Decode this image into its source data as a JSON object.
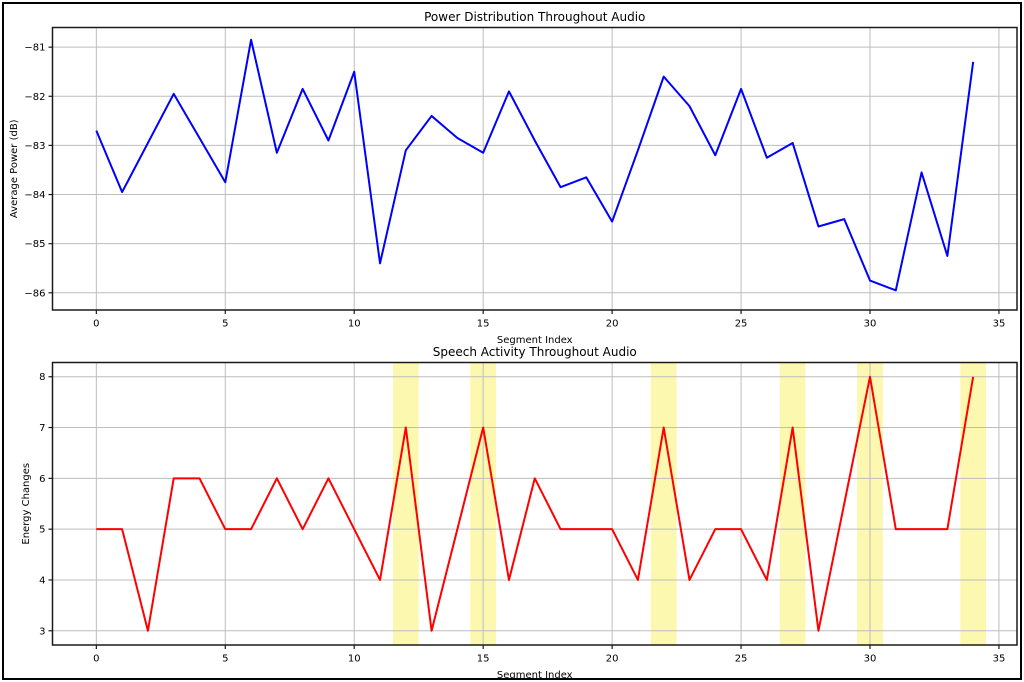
{
  "figure": {
    "background": "#ffffff",
    "border_color": "#000000"
  },
  "chart_data": [
    {
      "id": "power-distribution",
      "type": "line",
      "title": "Power Distribution Throughout Audio",
      "xlabel": "Segment Index",
      "ylabel": "Average Power (dB)",
      "line_color": "#0000ff",
      "line_width": 2,
      "grid": true,
      "grid_color": "#bdbdbd",
      "legend": "none",
      "xlim": [
        -1.7,
        35.7
      ],
      "ylim": [
        -86.35,
        -80.6
      ],
      "xticks": [
        0,
        5,
        10,
        15,
        20,
        25,
        30,
        35
      ],
      "yticks": [
        -81,
        -82,
        -83,
        -84,
        -85,
        -86
      ],
      "x": [
        0,
        1,
        2,
        3,
        4,
        5,
        6,
        7,
        8,
        9,
        10,
        11,
        12,
        13,
        14,
        15,
        16,
        17,
        18,
        19,
        20,
        21,
        22,
        23,
        24,
        25,
        26,
        27,
        28,
        29,
        30,
        31,
        32,
        33,
        34
      ],
      "y": [
        -82.7,
        -83.95,
        -82.95,
        -81.95,
        -82.85,
        -83.75,
        -80.85,
        -83.15,
        -81.85,
        -82.9,
        -81.5,
        -85.4,
        -83.1,
        -82.4,
        -82.85,
        -83.15,
        -81.9,
        -82.9,
        -83.85,
        -83.65,
        -84.55,
        -83.1,
        -81.6,
        -82.2,
        -83.2,
        -81.85,
        -83.25,
        -82.95,
        -84.65,
        -84.5,
        -85.75,
        -85.95,
        -83.55,
        -85.25,
        -81.3
      ],
      "highlight_spans": [],
      "highlight_color": null
    },
    {
      "id": "speech-activity",
      "type": "line",
      "title": "Speech Activity Throughout Audio",
      "xlabel": "Segment Index",
      "ylabel": "Energy Changes",
      "line_color": "#ff0000",
      "line_width": 2,
      "grid": true,
      "grid_color": "#bdbdbd",
      "legend": "none",
      "xlim": [
        -1.7,
        35.7
      ],
      "ylim": [
        2.72,
        8.28
      ],
      "xticks": [
        0,
        5,
        10,
        15,
        20,
        25,
        30,
        35
      ],
      "yticks": [
        3,
        4,
        5,
        6,
        7,
        8
      ],
      "x": [
        0,
        1,
        2,
        3,
        4,
        5,
        6,
        7,
        8,
        9,
        10,
        11,
        12,
        13,
        14,
        15,
        16,
        17,
        18,
        19,
        20,
        21,
        22,
        23,
        24,
        25,
        26,
        27,
        28,
        29,
        30,
        31,
        32,
        33,
        34
      ],
      "y": [
        5,
        5,
        3,
        6,
        6,
        5,
        5,
        6,
        5,
        6,
        5,
        4,
        7,
        3,
        5,
        7,
        4,
        6,
        5,
        5,
        5,
        4,
        7,
        4,
        5,
        5,
        4,
        7,
        3,
        5.5,
        8,
        5,
        5,
        5,
        8
      ],
      "highlight_spans": [
        [
          11.5,
          12.5
        ],
        [
          14.5,
          15.5
        ],
        [
          21.5,
          22.5
        ],
        [
          26.5,
          27.5
        ],
        [
          29.5,
          30.5
        ],
        [
          33.5,
          34.5
        ]
      ],
      "highlight_color": "#fcf8b0"
    }
  ]
}
